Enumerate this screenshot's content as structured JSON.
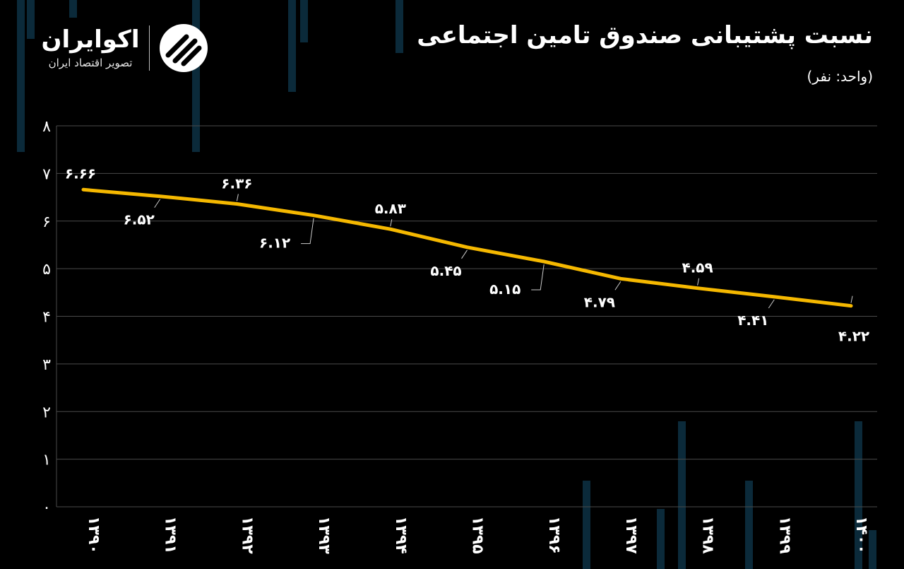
{
  "header": {
    "title": "نسبت پشتیبانی صندوق تامین اجتماعی",
    "subtitle": "(واحد: نفر)"
  },
  "logo": {
    "name": "اکوایران",
    "tagline": "تصویر اقتصاد ایران",
    "icon": "ecoiran-logo-icon"
  },
  "colors": {
    "background": "#000000",
    "line": "#f5b800",
    "grid": "#4a4a4a",
    "text": "#ffffff",
    "bg_bars": "#0b2a3a"
  },
  "chart_data": {
    "type": "line",
    "title": "نسبت پشتیبانی صندوق تامین اجتماعی",
    "subtitle": "(واحد: نفر)",
    "categories": [
      "۱۳۹۰",
      "۱۳۹۱",
      "۱۳۹۲",
      "۱۳۹۳",
      "۱۳۹۴",
      "۱۳۹۵",
      "۱۳۹۶",
      "۱۳۹۷",
      "۱۳۹۸",
      "۱۳۹۹",
      "۱۴۰۰"
    ],
    "values": [
      6.66,
      6.52,
      6.36,
      6.12,
      5.83,
      5.45,
      5.15,
      4.79,
      4.59,
      4.41,
      4.22
    ],
    "data_labels": [
      "۶.۶۶",
      "۶.۵۲",
      "۶.۳۶",
      "۶.۱۲",
      "۵.۸۳",
      "۵.۴۵",
      "۵.۱۵",
      "۴.۷۹",
      "۴.۵۹",
      "۴.۴۱",
      "۴.۲۲"
    ],
    "y_ticks": [
      "۰",
      "۱",
      "۲",
      "۳",
      "۴",
      "۵",
      "۶",
      "۷",
      "۸"
    ],
    "ylim": [
      0,
      8
    ],
    "grid": true,
    "legend": "none"
  }
}
